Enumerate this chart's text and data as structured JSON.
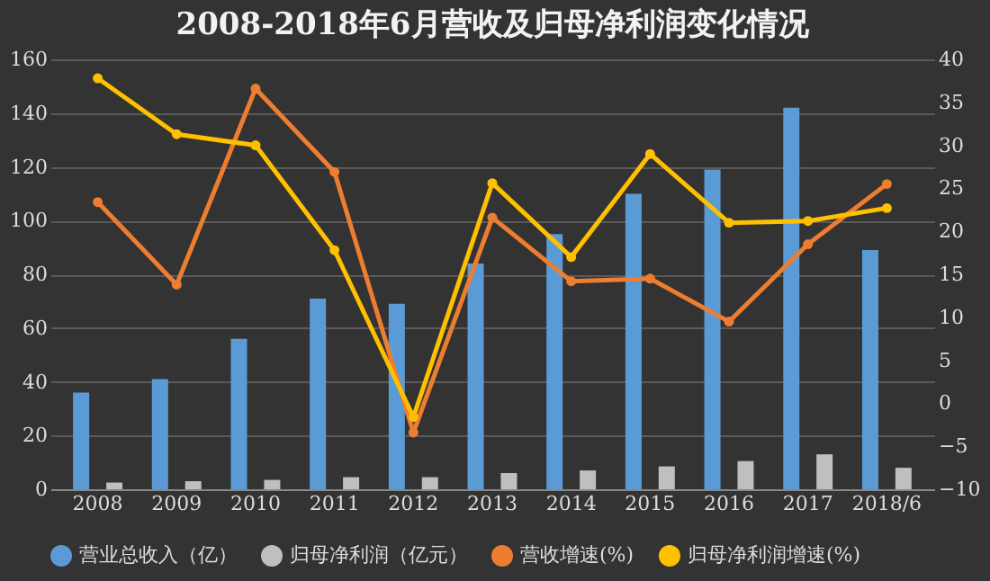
{
  "chart_data": {
    "type": "bar",
    "title": "2008-2018年6月营收及归母净利润变化情况",
    "categories": [
      "2008",
      "2009",
      "2010",
      "2011",
      "2012",
      "2013",
      "2014",
      "2015",
      "2016",
      "2017",
      "2018/6"
    ],
    "series": [
      {
        "name": "营业总收入（亿）",
        "color": "#5b9bd5",
        "values": [
          36,
          41,
          56,
          71,
          69,
          84,
          95,
          110,
          119,
          142,
          89
        ]
      },
      {
        "name": "归母净利润（亿元）",
        "color": "#bfbfbf",
        "values": [
          2.5,
          3,
          3.5,
          4.5,
          4.5,
          6,
          7,
          8.5,
          10.5,
          13,
          8
        ]
      },
      {
        "name": "营收增速(%)",
        "color": "#ed7d31",
        "type": "line",
        "axis": "y2",
        "values": [
          23.4,
          13.8,
          36.6,
          26.9,
          -3.4,
          21.6,
          14.2,
          14.5,
          9.5,
          18.5,
          25.5
        ]
      },
      {
        "name": "归母净利润增速(%)",
        "color": "#ffc000",
        "type": "line",
        "axis": "y2",
        "values": [
          37.8,
          31.3,
          30,
          17.8,
          -1.6,
          25.6,
          17,
          29,
          21,
          21.2,
          22.7
        ]
      }
    ],
    "ylim": [
      0,
      160
    ],
    "yticks": [
      0,
      20,
      40,
      60,
      80,
      100,
      120,
      140,
      160
    ],
    "y2lim": [
      -10,
      40
    ],
    "y2ticks": [
      -10,
      -5,
      0,
      5,
      10,
      15,
      20,
      25,
      30,
      35,
      40
    ],
    "grid": "y",
    "legend": "bottom",
    "marker": "circle"
  }
}
